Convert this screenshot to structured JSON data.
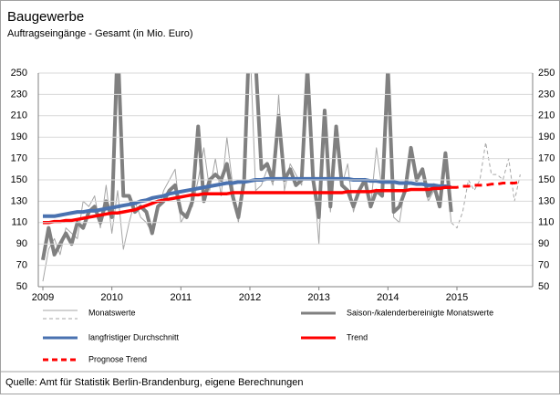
{
  "chart_data": {
    "type": "line",
    "title": "Baugewerbe",
    "subtitle": "Auftragseingänge - Gesamt (in Mio. Euro)",
    "source": "Quelle: Amt für Statistik Berlin-Brandenburg, eigene Berechnungen",
    "categories": [
      "2009",
      null,
      null,
      null,
      null,
      null,
      null,
      null,
      null,
      null,
      null,
      null,
      "2010",
      null,
      null,
      null,
      null,
      null,
      null,
      null,
      null,
      null,
      null,
      null,
      "2011",
      null,
      null,
      null,
      null,
      null,
      null,
      null,
      null,
      null,
      null,
      null,
      "2012",
      null,
      null,
      null,
      null,
      null,
      null,
      null,
      null,
      null,
      null,
      null,
      "2013",
      null,
      null,
      null,
      null,
      null,
      null,
      null,
      null,
      null,
      null,
      null,
      "2014",
      null,
      null,
      null,
      null,
      null,
      null,
      null,
      null,
      null,
      null,
      null,
      "2015",
      null,
      null,
      null,
      null,
      null,
      null,
      null,
      null,
      null,
      null,
      null
    ],
    "ylim": [
      50,
      250
    ],
    "yticks": [
      50,
      70,
      90,
      110,
      130,
      150,
      170,
      190,
      210,
      230,
      250
    ],
    "y2lim": [
      50,
      250
    ],
    "y2ticks": [
      50,
      70,
      90,
      110,
      130,
      150,
      170,
      190,
      210,
      230,
      250
    ],
    "grid": true,
    "legend": "bottom",
    "series": [
      {
        "name": "Monatswerte",
        "color": "#a6a6a6",
        "width": 1,
        "values": [
          55,
          85,
          95,
          80,
          105,
          100,
          95,
          130,
          125,
          135,
          105,
          145,
          100,
          140,
          85,
          110,
          130,
          115,
          110,
          100,
          120,
          140,
          150,
          160,
          110,
          120,
          125,
          150,
          180,
          140,
          170,
          135,
          190,
          145,
          110,
          160,
          280,
          140,
          145,
          160,
          145,
          230,
          140,
          165,
          155,
          145,
          230,
          160,
          90,
          210,
          120,
          200,
          145,
          165,
          120,
          140,
          150,
          125,
          180,
          140,
          250,
          115,
          110,
          145,
          175,
          150,
          160,
          130,
          140,
          125,
          170,
          110,
          null,
          null,
          null,
          null,
          null,
          null,
          null,
          null,
          null,
          null,
          null,
          null
        ],
        "forecast_values": [
          null,
          null,
          null,
          null,
          null,
          null,
          null,
          null,
          null,
          null,
          null,
          null,
          null,
          null,
          null,
          null,
          null,
          null,
          null,
          null,
          null,
          null,
          null,
          null,
          null,
          null,
          null,
          null,
          null,
          null,
          null,
          null,
          null,
          null,
          null,
          null,
          null,
          null,
          null,
          null,
          null,
          null,
          null,
          null,
          null,
          null,
          null,
          null,
          null,
          null,
          null,
          null,
          null,
          null,
          null,
          null,
          null,
          null,
          null,
          null,
          null,
          null,
          null,
          null,
          null,
          null,
          null,
          null,
          null,
          null,
          null,
          110,
          105,
          120,
          150,
          140,
          150,
          185,
          155,
          155,
          150,
          170,
          130,
          155
        ]
      },
      {
        "name": "Saison-/kalenderbereinigte Monatswerte",
        "color": "#808080",
        "width": 4,
        "values": [
          75,
          105,
          80,
          90,
          100,
          90,
          110,
          105,
          120,
          125,
          110,
          130,
          115,
          280,
          135,
          135,
          120,
          125,
          120,
          100,
          125,
          130,
          140,
          145,
          120,
          115,
          130,
          200,
          130,
          150,
          155,
          150,
          165,
          135,
          115,
          150,
          300,
          260,
          160,
          165,
          150,
          210,
          150,
          160,
          145,
          150,
          255,
          150,
          115,
          215,
          125,
          200,
          145,
          140,
          125,
          140,
          150,
          125,
          140,
          135,
          255,
          120,
          125,
          140,
          180,
          150,
          160,
          135,
          145,
          125,
          175,
          120,
          null,
          null,
          null,
          null,
          null,
          null,
          null,
          null,
          null,
          null,
          null,
          null
        ]
      },
      {
        "name": "langfristiger Durchschnitt",
        "color": "#4a72b0",
        "width": 4,
        "values": [
          116,
          116,
          116,
          117,
          118,
          119,
          120,
          120,
          121,
          121,
          122,
          123,
          124,
          125,
          126,
          127,
          128,
          130,
          131,
          133,
          134,
          135,
          137,
          138,
          139,
          140,
          141,
          142,
          143,
          144,
          145,
          146,
          147,
          147,
          148,
          148,
          149,
          150,
          150,
          151,
          151,
          151,
          151,
          151,
          151,
          151,
          151,
          151,
          151,
          151,
          151,
          151,
          151,
          151,
          150,
          150,
          150,
          149,
          149,
          148,
          148,
          148,
          147,
          147,
          147,
          146,
          146,
          145,
          145,
          144,
          144,
          143,
          null,
          null,
          null,
          null,
          null,
          null,
          null,
          null,
          null,
          null,
          null,
          null
        ]
      },
      {
        "name": "Trend",
        "color": "#ff0000",
        "width": 3.5,
        "values": [
          110,
          110,
          111,
          111,
          112,
          112,
          113,
          114,
          115,
          116,
          117,
          118,
          119,
          119,
          120,
          121,
          122,
          124,
          126,
          128,
          130,
          131,
          132,
          133,
          134,
          135,
          136,
          136,
          137,
          137,
          137,
          137,
          137,
          138,
          138,
          138,
          138,
          138,
          138,
          138,
          138,
          138,
          138,
          138,
          138,
          138,
          138,
          138,
          138,
          138,
          138,
          138,
          138,
          139,
          139,
          139,
          139,
          139,
          140,
          140,
          140,
          140,
          140,
          140,
          141,
          141,
          141,
          141,
          142,
          142,
          143,
          143,
          null,
          null,
          null,
          null,
          null,
          null,
          null,
          null,
          null,
          null,
          null,
          null
        ]
      },
      {
        "name": "Prognose Trend",
        "color": "#ff0000",
        "width": 3,
        "dashed": true,
        "values": [
          null,
          null,
          null,
          null,
          null,
          null,
          null,
          null,
          null,
          null,
          null,
          null,
          null,
          null,
          null,
          null,
          null,
          null,
          null,
          null,
          null,
          null,
          null,
          null,
          null,
          null,
          null,
          null,
          null,
          null,
          null,
          null,
          null,
          null,
          null,
          null,
          null,
          null,
          null,
          null,
          null,
          null,
          null,
          null,
          null,
          null,
          null,
          null,
          null,
          null,
          null,
          null,
          null,
          null,
          null,
          null,
          null,
          null,
          null,
          null,
          null,
          null,
          null,
          null,
          null,
          null,
          null,
          null,
          null,
          null,
          null,
          143,
          143,
          144,
          144,
          145,
          145,
          145,
          146,
          146,
          147,
          147,
          147,
          148
        ]
      }
    ]
  }
}
